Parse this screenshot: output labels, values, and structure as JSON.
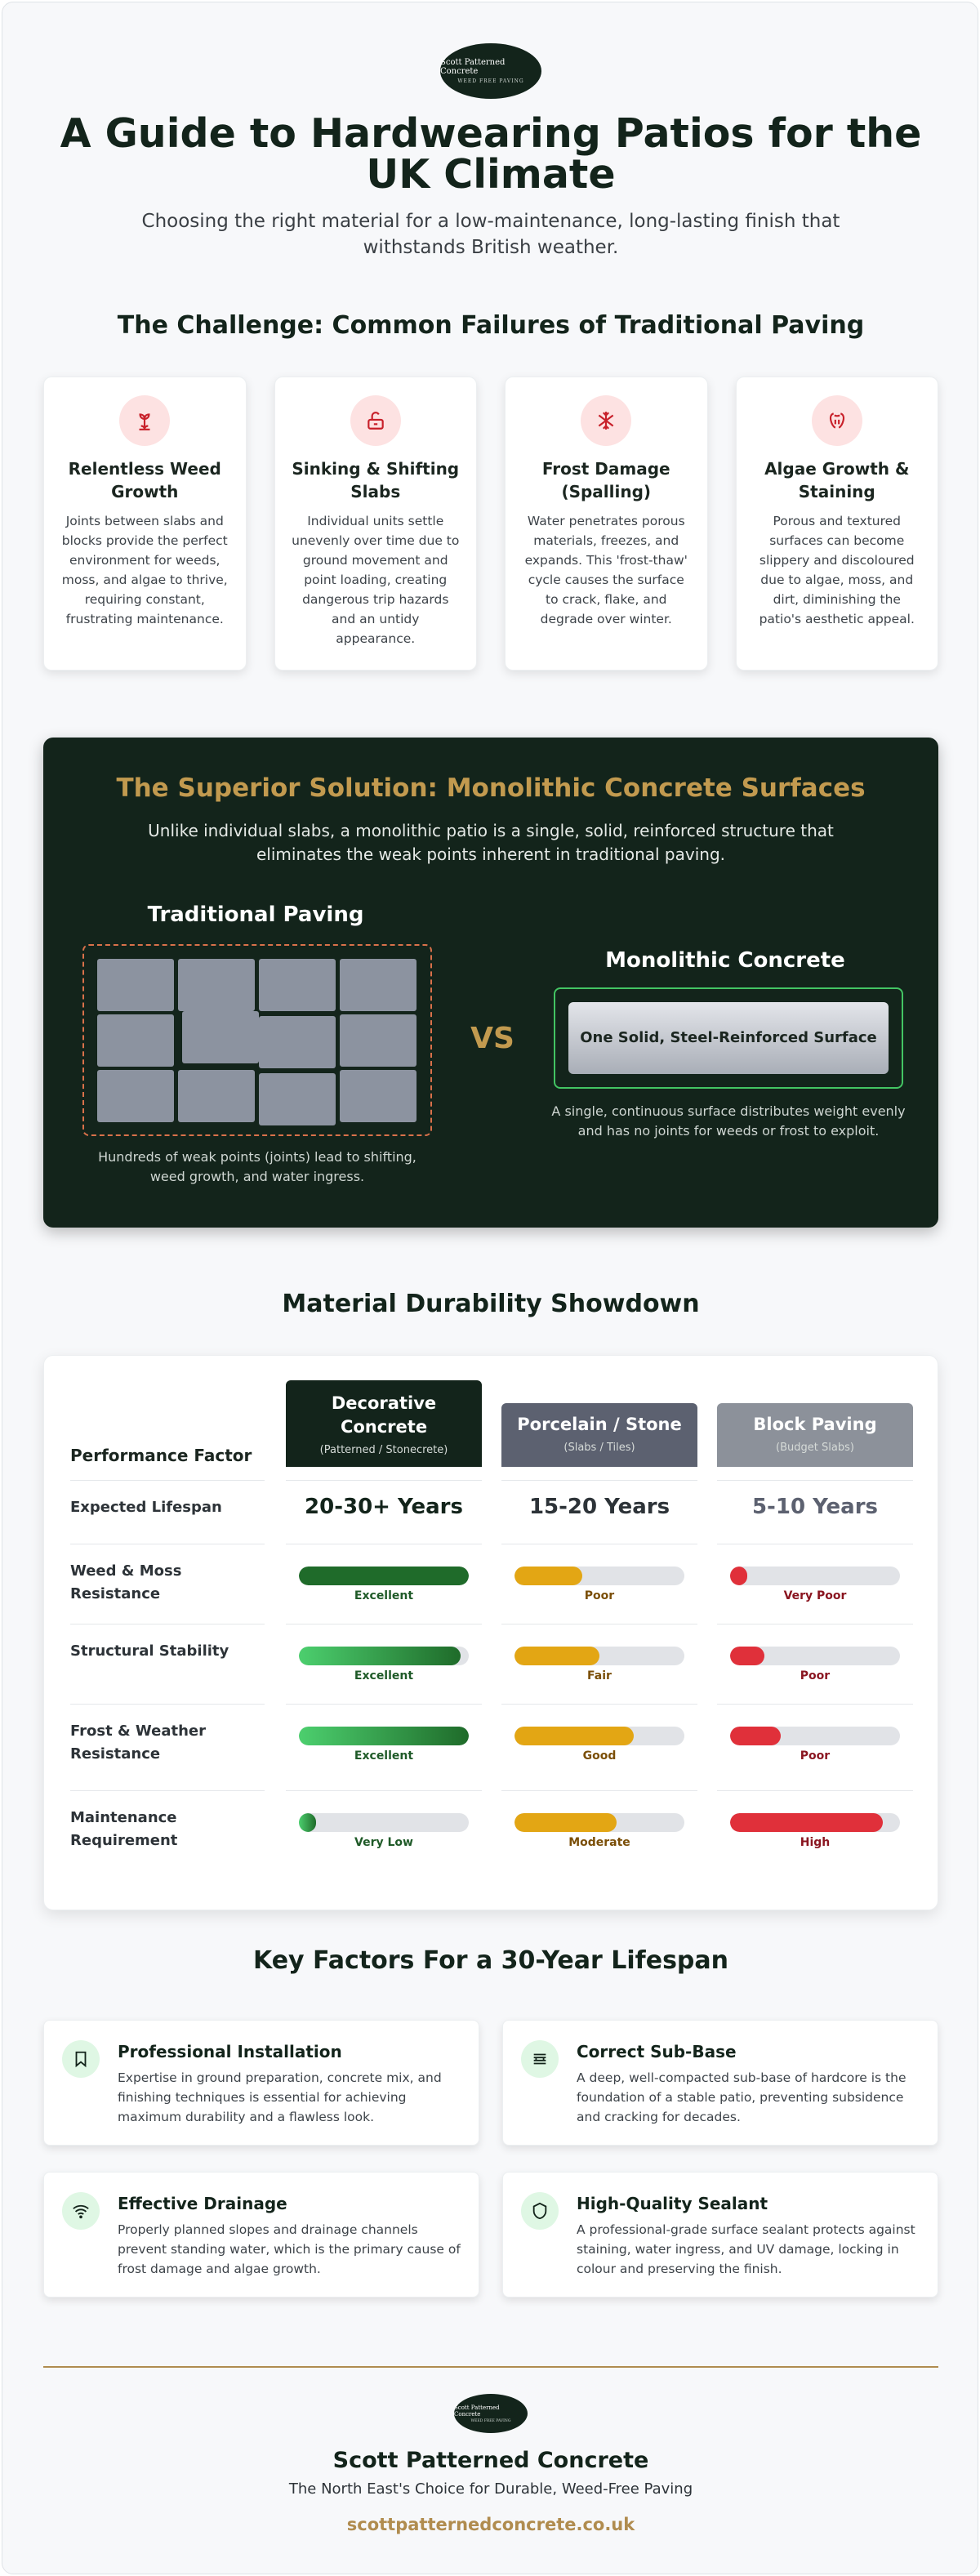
{
  "brand": {
    "logo_line1": "Scott Patterned Concrete",
    "logo_line2": "WEED FREE PAVING"
  },
  "hero": {
    "title": "A Guide to Hardwearing Patios for the UK Climate",
    "subtitle": "Choosing the right material for a low-maintenance, long-lasting finish that withstands British weather."
  },
  "challenge": {
    "heading": "The Challenge: Common Failures of Traditional Paving",
    "cards": [
      {
        "icon": "weed-icon",
        "title": "Relentless Weed Growth",
        "text": "Joints between slabs and blocks provide the perfect environment for weeds, moss, and algae to thrive, requiring constant, frustrating maintenance."
      },
      {
        "icon": "unlock-icon",
        "title": "Sinking & Shifting Slabs",
        "text": "Individual units settle unevenly over time due to ground movement and point loading, creating dangerous trip hazards and an untidy appearance."
      },
      {
        "icon": "snowflake-icon",
        "title": "Frost Damage (Spalling)",
        "text": "Water penetrates porous materials, freezes, and expands. This 'frost-thaw' cycle causes the surface to crack, flake, and degrade over winter."
      },
      {
        "icon": "algae-icon",
        "title": "Algae Growth & Staining",
        "text": "Porous and textured surfaces can become slippery and discoloured due to algae, moss, and dirt, diminishing the patio's aesthetic appeal."
      }
    ]
  },
  "solution": {
    "heading": "The Superior Solution: Monolithic Concrete Surfaces",
    "subtitle": "Unlike individual slabs, a monolithic patio is a single, solid, reinforced structure that eliminates the weak points inherent in traditional paving.",
    "traditional_heading": "Traditional Paving",
    "traditional_caption": "Hundreds of weak points (joints) lead to shifting, weed growth, and water ingress.",
    "vs": "VS",
    "monolithic_heading": "Monolithic Concrete",
    "monolithic_label": "One Solid, Steel-Reinforced Surface",
    "monolithic_caption": "A single, continuous surface distributes weight evenly and has no joints for weeds or frost to exploit."
  },
  "durability": {
    "heading": "Material Durability Showdown",
    "factor_header": "Performance Factor",
    "columns": [
      {
        "title": "Decorative Concrete",
        "subtitle": "(Patterned / Stonecrete)",
        "color": "#13241b"
      },
      {
        "title": "Porcelain / Stone",
        "subtitle": "(Slabs / Tiles)",
        "color": "#5c6170"
      },
      {
        "title": "Block Paving",
        "subtitle": "(Budget Slabs)",
        "color": "#8c919a"
      }
    ],
    "lifespan_label": "Expected Lifespan",
    "lifespans": [
      "20-30+ Years",
      "15-20 Years",
      "5-10 Years"
    ],
    "rows": [
      {
        "label": "Weed & Moss Resistance",
        "cells": [
          {
            "level": 1.0,
            "text": "Excellent",
            "tone": "dark-green"
          },
          {
            "level": 0.4,
            "text": "Poor",
            "tone": "amber"
          },
          {
            "level": 0.1,
            "text": "Very Poor",
            "tone": "red"
          }
        ]
      },
      {
        "label": "Structural Stability",
        "cells": [
          {
            "level": 0.95,
            "text": "Excellent",
            "tone": "green"
          },
          {
            "level": 0.5,
            "text": "Fair",
            "tone": "amber"
          },
          {
            "level": 0.2,
            "text": "Poor",
            "tone": "red"
          }
        ]
      },
      {
        "label": "Frost & Weather Resistance",
        "cells": [
          {
            "level": 1.0,
            "text": "Excellent",
            "tone": "green"
          },
          {
            "level": 0.7,
            "text": "Good",
            "tone": "amber"
          },
          {
            "level": 0.3,
            "text": "Poor",
            "tone": "red"
          }
        ]
      },
      {
        "label": "Maintenance Requirement",
        "cells": [
          {
            "level": 0.1,
            "text": "Very Low",
            "tone": "green"
          },
          {
            "level": 0.6,
            "text": "Moderate",
            "tone": "amber"
          },
          {
            "level": 0.9,
            "text": "High",
            "tone": "red"
          }
        ]
      }
    ]
  },
  "factors": {
    "heading": "Key Factors For a 30-Year Lifespan",
    "items": [
      {
        "icon": "bookmark-icon",
        "title": "Professional Installation",
        "text": "Expertise in ground preparation, concrete mix, and finishing techniques is essential for achieving maximum durability and a flawless look."
      },
      {
        "icon": "layers-icon",
        "title": "Correct Sub-Base",
        "text": "A deep, well-compacted sub-base of hardcore is the foundation of a stable patio, preventing subsidence and cracking for decades."
      },
      {
        "icon": "wifi-drainage-icon",
        "title": "Effective Drainage",
        "text": "Properly planned slopes and drainage channels prevent standing water, which is the primary cause of frost damage and algae growth."
      },
      {
        "icon": "shield-icon",
        "title": "High-Quality Sealant",
        "text": "A professional-grade surface sealant protects against staining, water ingress, and UV damage, locking in colour and preserving the finish."
      }
    ]
  },
  "footer": {
    "name": "Scott Patterned Concrete",
    "tagline": "The North East's Choice for Durable, Weed-Free Paving",
    "url": "scottpatternedconcrete.co.uk"
  }
}
